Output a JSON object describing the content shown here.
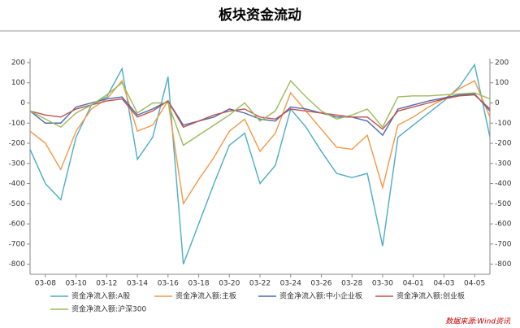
{
  "chart_data": {
    "type": "line",
    "title": "板块资金流动",
    "source": "数据来源:Wind资讯",
    "categories": [
      null,
      "03-08",
      null,
      "03-10",
      null,
      "03-12",
      null,
      "03-14",
      null,
      "03-16",
      null,
      "03-18",
      null,
      "03-20",
      null,
      "03-22",
      null,
      "03-24",
      null,
      "03-26",
      null,
      "03-28",
      null,
      "03-30",
      null,
      "04-01",
      null,
      "04-03",
      null,
      "04-05",
      null
    ],
    "series": [
      {
        "name": "资金净流入额:A股",
        "color": "#4bacc6",
        "values": [
          -230,
          -400,
          -480,
          -170,
          -10,
          30,
          170,
          -280,
          -170,
          130,
          -800,
          -600,
          -400,
          -210,
          -150,
          -400,
          -310,
          -30,
          -120,
          -240,
          -350,
          -370,
          -350,
          -710,
          -170,
          -110,
          -50,
          10,
          80,
          190,
          -170
        ]
      },
      {
        "name": "资金净流入额:主板",
        "color": "#f79646",
        "values": [
          -140,
          -200,
          -330,
          -140,
          -30,
          20,
          110,
          -140,
          -110,
          10,
          -500,
          -380,
          -270,
          -140,
          -80,
          -240,
          -150,
          50,
          -40,
          -130,
          -220,
          -230,
          -160,
          -420,
          -110,
          -70,
          -20,
          20,
          70,
          110,
          -70
        ]
      },
      {
        "name": "资金净流入额:中小企业板",
        "color": "#4a6aad",
        "values": [
          -40,
          -100,
          -100,
          -20,
          0,
          20,
          30,
          -60,
          -30,
          10,
          -110,
          -90,
          -70,
          -30,
          -50,
          -80,
          -90,
          -20,
          -30,
          -50,
          -70,
          -70,
          -90,
          -160,
          -30,
          -10,
          10,
          25,
          40,
          45,
          -40
        ]
      },
      {
        "name": "资金净流入额:创业板",
        "color": "#c0504d",
        "values": [
          -40,
          -60,
          -70,
          -30,
          -10,
          10,
          20,
          -70,
          -40,
          10,
          -120,
          -90,
          -60,
          -40,
          -30,
          -70,
          -80,
          -30,
          -40,
          -50,
          -60,
          -70,
          -70,
          -130,
          -40,
          -20,
          0,
          20,
          35,
          40,
          -30
        ]
      },
      {
        "name": "资金净流入额:沪深300",
        "color": "#9bbb59",
        "values": [
          -40,
          -80,
          -120,
          -50,
          -10,
          40,
          100,
          -50,
          0,
          0,
          -210,
          -160,
          -110,
          -60,
          0,
          -90,
          -40,
          110,
          30,
          -40,
          -80,
          -60,
          -30,
          -120,
          30,
          35,
          35,
          40,
          45,
          50,
          20
        ]
      }
    ],
    "ylim": [
      -850,
      220
    ],
    "yticks": [
      -800,
      -700,
      -600,
      -500,
      -400,
      -300,
      -200,
      -100,
      0,
      100,
      200
    ],
    "y2lim": [
      -850,
      220
    ],
    "y2ticks": [
      -800,
      -700,
      -600,
      -500,
      -400,
      -300,
      -200,
      -100,
      0,
      100,
      200
    ]
  }
}
